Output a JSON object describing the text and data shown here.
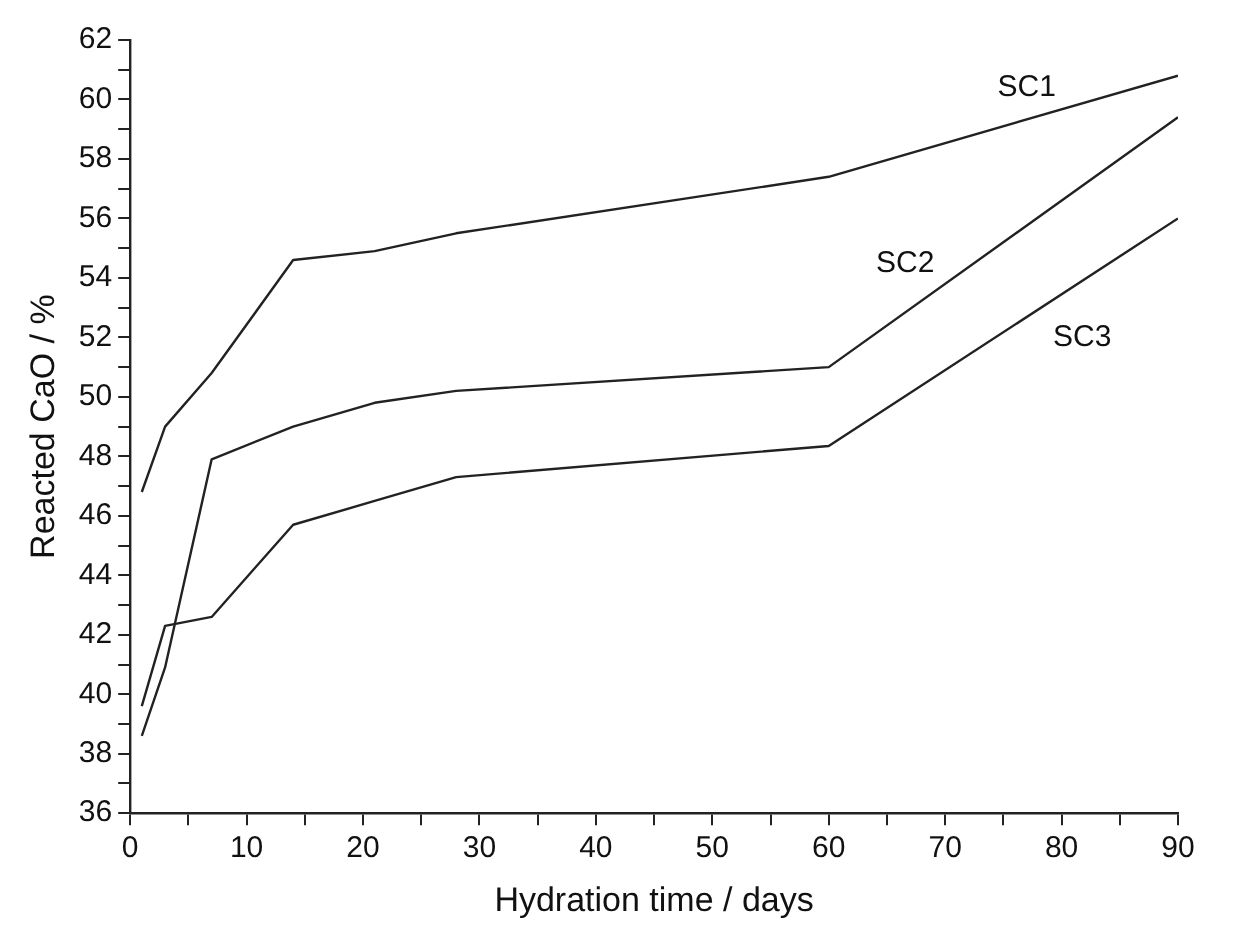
{
  "chart_data": {
    "type": "line",
    "xlabel": "Hydration time / days",
    "ylabel": "Reacted CaO / %",
    "x": [
      1,
      3,
      7,
      14,
      21,
      28,
      60,
      90
    ],
    "series": [
      {
        "name": "SC1",
        "color": "#222222",
        "values": [
          46.8,
          49.0,
          50.8,
          54.6,
          54.9,
          55.5,
          57.4,
          60.8
        ]
      },
      {
        "name": "SC2",
        "color": "#222222",
        "values": [
          38.6,
          40.9,
          47.9,
          49.0,
          49.8,
          50.2,
          51.0,
          59.4
        ]
      },
      {
        "name": "SC3",
        "color": "#222222",
        "values": [
          39.6,
          42.3,
          42.6,
          45.7,
          46.5,
          47.3,
          48.35,
          56.0
        ]
      }
    ],
    "xlim": [
      0,
      90
    ],
    "xticks": [
      0,
      {
        "value": 5,
        "label": null
      },
      10,
      {
        "value": 15,
        "label": null
      },
      20,
      {
        "value": 25,
        "label": null
      },
      30,
      {
        "value": 35,
        "label": null
      },
      40,
      {
        "value": 45,
        "label": null
      },
      50,
      {
        "value": 55,
        "label": null
      },
      60,
      {
        "value": 65,
        "label": null
      },
      70,
      {
        "value": 75,
        "label": null
      },
      80,
      {
        "value": 85,
        "label": null
      },
      90
    ],
    "ylim": [
      36,
      62
    ],
    "yticks": [
      36,
      {
        "value": 37,
        "label": null
      },
      38,
      {
        "value": 39,
        "label": null
      },
      40,
      {
        "value": 41,
        "label": null
      },
      42,
      {
        "value": 43,
        "label": null
      },
      44,
      {
        "value": 45,
        "label": null
      },
      46,
      {
        "value": 47,
        "label": null
      },
      48,
      {
        "value": 49,
        "label": null
      },
      50,
      {
        "value": 51,
        "label": null
      },
      52,
      {
        "value": 53,
        "label": null
      },
      54,
      {
        "value": 55,
        "label": null
      },
      56,
      {
        "value": 57,
        "label": null
      },
      58,
      {
        "value": 59,
        "label": null
      },
      60,
      {
        "value": 61,
        "label": null
      },
      62
    ],
    "grid": false,
    "legend": false,
    "marker": "none",
    "line_style": "solid"
  }
}
